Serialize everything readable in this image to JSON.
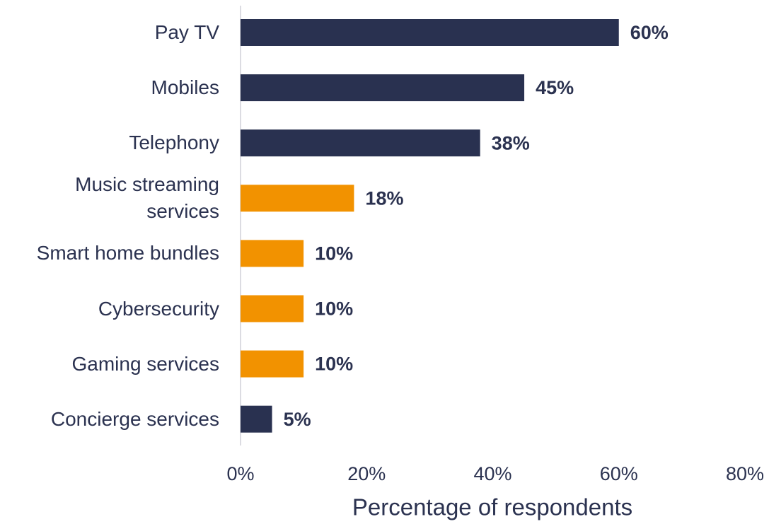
{
  "chart_data": {
    "type": "hbar",
    "categories": [
      "Pay TV",
      "Mobiles",
      "Telephony",
      "Music streaming services",
      "Smart home bundles",
      "Cybersecurity",
      "Gaming services",
      "Concierge services"
    ],
    "values": [
      60,
      45,
      38,
      18,
      10,
      10,
      10,
      5
    ],
    "value_labels": [
      "60%",
      "45%",
      "38%",
      "18%",
      "10%",
      "10%",
      "10%",
      "5%"
    ],
    "colors": [
      "#293150",
      "#293150",
      "#293150",
      "#f29200",
      "#f29200",
      "#f29200",
      "#f29200",
      "#293150"
    ],
    "xlim": [
      0,
      80
    ],
    "xticks": [
      {
        "value": 0,
        "label": "0%"
      },
      {
        "value": 20,
        "label": "20%"
      },
      {
        "value": 40,
        "label": "40%"
      },
      {
        "value": 60,
        "label": "60%"
      },
      {
        "value": 80,
        "label": "80%"
      }
    ],
    "xlabel": "Percentage of respondents",
    "grid": false
  }
}
